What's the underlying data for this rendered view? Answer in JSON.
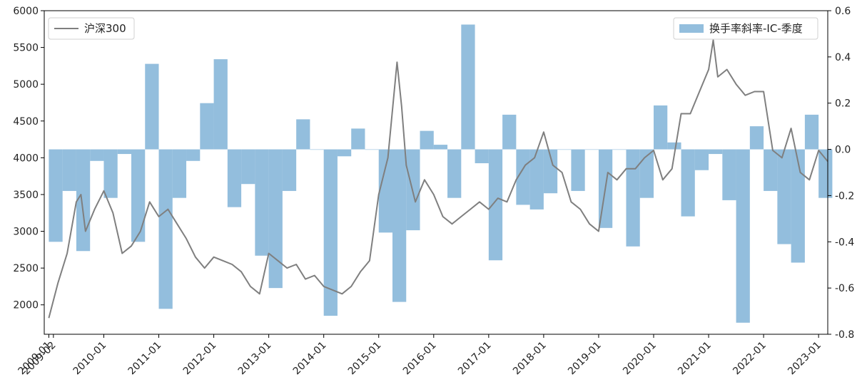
{
  "chart_data": {
    "type": "bar+line",
    "title": "",
    "xlabel": "",
    "ylabel_left": "",
    "ylabel_right": "",
    "x_range": [
      "2008-12",
      "2023-03"
    ],
    "x_tick_labels": [
      "2009-01",
      "2009-02",
      "2010-01",
      "2011-01",
      "2012-01",
      "2013-01",
      "2014-01",
      "2015-01",
      "2016-01",
      "2017-01",
      "2018-01",
      "2019-01",
      "2020-01",
      "2021-01",
      "2022-01",
      "2023-01"
    ],
    "y_left": {
      "ylim": [
        1600,
        6000
      ],
      "ticks": [
        2000,
        2500,
        3000,
        3500,
        4000,
        4500,
        5000,
        5500,
        6000
      ]
    },
    "y_right": {
      "ylim": [
        -0.8,
        0.6
      ],
      "ticks": [
        -0.8,
        -0.6,
        -0.4,
        -0.2,
        0.0,
        0.2,
        0.4,
        0.6
      ],
      "tick_labels": [
        "-0.8",
        "-0.6",
        "-0.4",
        "-0.2",
        "0.0",
        "0.2",
        "0.4",
        "0.6"
      ]
    },
    "grid": false,
    "series": [
      {
        "name": "沪深300",
        "type": "line",
        "axis": "left",
        "color": "#7f7f7f",
        "x": [
          "2009-01",
          "2009-03",
          "2009-05",
          "2009-07",
          "2009-08",
          "2009-09",
          "2009-11",
          "2010-01",
          "2010-03",
          "2010-05",
          "2010-07",
          "2010-09",
          "2010-11",
          "2011-01",
          "2011-03",
          "2011-05",
          "2011-07",
          "2011-09",
          "2011-11",
          "2012-01",
          "2012-03",
          "2012-05",
          "2012-07",
          "2012-09",
          "2012-11",
          "2013-01",
          "2013-03",
          "2013-05",
          "2013-07",
          "2013-09",
          "2013-11",
          "2014-01",
          "2014-03",
          "2014-05",
          "2014-07",
          "2014-09",
          "2014-11",
          "2015-01",
          "2015-03",
          "2015-05",
          "2015-06",
          "2015-07",
          "2015-09",
          "2015-11",
          "2016-01",
          "2016-03",
          "2016-05",
          "2016-07",
          "2016-09",
          "2016-11",
          "2017-01",
          "2017-03",
          "2017-05",
          "2017-07",
          "2017-09",
          "2017-11",
          "2018-01",
          "2018-03",
          "2018-05",
          "2018-07",
          "2018-09",
          "2018-11",
          "2019-01",
          "2019-03",
          "2019-05",
          "2019-07",
          "2019-09",
          "2019-11",
          "2020-01",
          "2020-03",
          "2020-05",
          "2020-07",
          "2020-09",
          "2020-11",
          "2021-01",
          "2021-02",
          "2021-03",
          "2021-05",
          "2021-07",
          "2021-09",
          "2021-11",
          "2022-01",
          "2022-03",
          "2022-05",
          "2022-07",
          "2022-09",
          "2022-11",
          "2023-01",
          "2023-03"
        ],
        "values": [
          1820,
          2300,
          2700,
          3400,
          3500,
          3000,
          3300,
          3550,
          3250,
          2700,
          2800,
          3000,
          3400,
          3200,
          3300,
          3100,
          2900,
          2650,
          2500,
          2650,
          2600,
          2550,
          2450,
          2250,
          2150,
          2700,
          2600,
          2500,
          2550,
          2350,
          2400,
          2250,
          2200,
          2150,
          2250,
          2450,
          2600,
          3500,
          4000,
          5300,
          4700,
          3900,
          3400,
          3700,
          3500,
          3200,
          3100,
          3200,
          3300,
          3400,
          3300,
          3450,
          3400,
          3700,
          3900,
          4000,
          4350,
          3900,
          3800,
          3400,
          3300,
          3100,
          3000,
          3800,
          3700,
          3850,
          3850,
          4000,
          4100,
          3700,
          3850,
          4600,
          4600,
          4900,
          5200,
          5600,
          5100,
          5200,
          5000,
          4850,
          4900,
          4900,
          4100,
          4000,
          4400,
          3800,
          3700,
          4100,
          3950
        ]
      },
      {
        "name": "换手率斜率-IC-季度",
        "type": "bar",
        "axis": "right",
        "color": "#6fa8d2",
        "opacity": 0.75,
        "quarters": [
          "2009Q1",
          "2009Q2",
          "2009Q3",
          "2009Q4",
          "2010Q1",
          "2010Q2",
          "2010Q3",
          "2010Q4",
          "2011Q1",
          "2011Q2",
          "2011Q3",
          "2011Q4",
          "2012Q1",
          "2012Q2",
          "2012Q3",
          "2012Q4",
          "2013Q1",
          "2013Q2",
          "2013Q3",
          "2013Q4",
          "2014Q1",
          "2014Q2",
          "2014Q3",
          "2014Q4",
          "2015Q1",
          "2015Q2",
          "2015Q3",
          "2015Q4",
          "2016Q1",
          "2016Q2",
          "2016Q3",
          "2016Q4",
          "2017Q1",
          "2017Q2",
          "2017Q3",
          "2017Q4",
          "2018Q1",
          "2018Q2",
          "2018Q3",
          "2018Q4",
          "2019Q1",
          "2019Q2",
          "2019Q3",
          "2019Q4",
          "2020Q1",
          "2020Q2",
          "2020Q3",
          "2020Q4",
          "2021Q1",
          "2021Q2",
          "2021Q3",
          "2021Q4",
          "2022Q1",
          "2022Q2",
          "2022Q3",
          "2022Q4",
          "2023Q1"
        ],
        "values": [
          -0.4,
          -0.18,
          -0.44,
          -0.05,
          -0.21,
          -0.02,
          -0.4,
          0.37,
          -0.69,
          -0.21,
          -0.05,
          0.2,
          0.39,
          -0.25,
          -0.15,
          -0.46,
          -0.6,
          -0.18,
          0.13,
          -0.0,
          -0.72,
          -0.03,
          0.09,
          -0.0,
          -0.36,
          -0.66,
          -0.35,
          0.08,
          0.02,
          -0.21,
          0.54,
          -0.06,
          -0.48,
          0.15,
          -0.24,
          -0.26,
          -0.19,
          0.0,
          -0.18,
          -0.0,
          -0.34,
          -0.0,
          -0.42,
          -0.21,
          0.19,
          0.03,
          -0.29,
          -0.09,
          -0.02,
          -0.22,
          -0.75,
          0.1,
          -0.18,
          -0.41,
          -0.49,
          0.15,
          -0.21
        ]
      }
    ],
    "legend": {
      "line_placement": "top-left",
      "bar_placement": "top-right"
    }
  }
}
